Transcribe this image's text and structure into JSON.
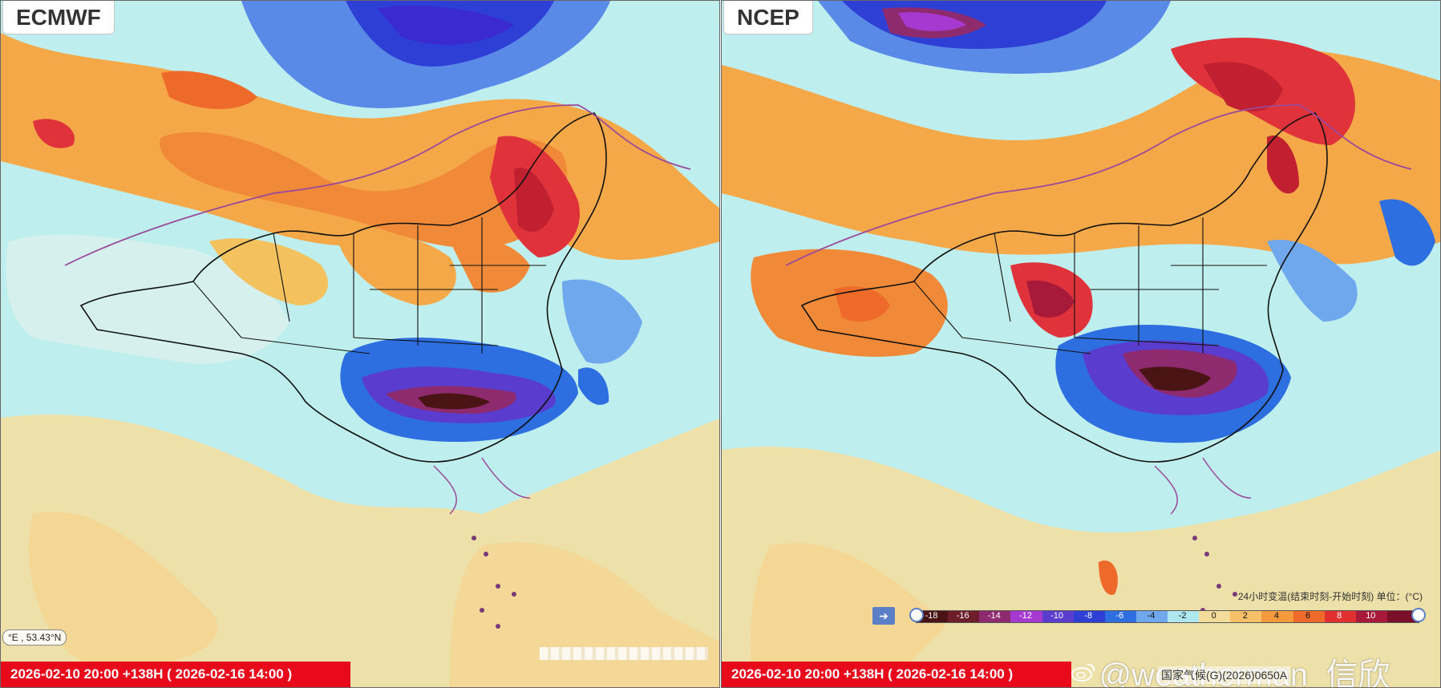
{
  "panels": [
    {
      "model": "ECMWF",
      "time_label": "2026-02-10 20:00 +138H ( 2026-02-16 14:00 )",
      "coordinate_readout": "°E , 53.43°N"
    },
    {
      "model": "NCEP",
      "time_label": "2026-02-10 20:00 +138H ( 2026-02-16 14:00 )"
    }
  ],
  "legend": {
    "title": "24小时变温(结束时刻-开始时刻) 单位：(°C)",
    "ticks": [
      "-18",
      "-16",
      "-14",
      "-12",
      "-10",
      "-8",
      "-6",
      "-4",
      "-2",
      "0",
      "2",
      "4",
      "6",
      "8",
      "10"
    ],
    "colors": [
      "#4a1414",
      "#6e1e2b",
      "#8e2a6e",
      "#a63ad0",
      "#5a3ccf",
      "#2d3fd4",
      "#2d6fe0",
      "#6fa8ec",
      "#aee8ee",
      "#f4dc9a",
      "#f9c06a",
      "#f39a3c",
      "#ee6a2a",
      "#e03030",
      "#a81a3a",
      "#7a0f2a"
    ],
    "arrow_icon": "arrow-right-icon"
  },
  "watermark": {
    "icon": "weibo-icon",
    "text": "@weatherman_信欣"
  },
  "source_note": "国家气候(G)(2026)0650A",
  "colors": {
    "time_bar": "#e8091b",
    "sea_base": "#bfeeee",
    "tropics_warm": "#f2dea0",
    "warm_orange": "#f5a848",
    "hot_red": "#e0323a",
    "cold_blue": "#2d5ad8",
    "deep_purple": "#7b2ad0",
    "dark_brown": "#5a1a1a",
    "border_line": "#111111",
    "coast_line": "#9a4a9a"
  }
}
